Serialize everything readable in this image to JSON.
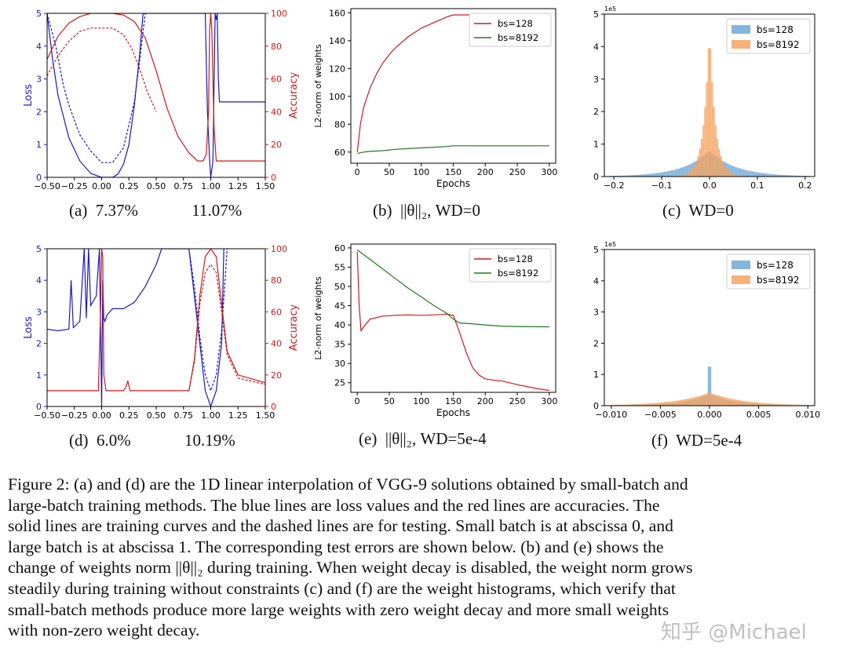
{
  "panels": {
    "a": {
      "caption": "(a)  7.37%             11.07%",
      "chart_data": {
        "type": "line",
        "xlim": [
          -0.5,
          1.5
        ],
        "xticks": [
          "−0.50",
          "−0.25",
          "0.00",
          "0.25",
          "0.50",
          "0.75",
          "1.00",
          "1.25",
          "1.50"
        ],
        "left_axis": {
          "label": "Loss",
          "lim": [
            0,
            5
          ],
          "ticks": [
            "0",
            "1",
            "2",
            "3",
            "4",
            "5"
          ],
          "color": "#1a1ab5"
        },
        "right_axis": {
          "label": "Accuracy",
          "lim": [
            0,
            100
          ],
          "ticks": [
            "0",
            "20",
            "40",
            "60",
            "80",
            "100"
          ],
          "color": "#cc1a1a"
        },
        "series": [
          {
            "kind": "loss-train",
            "style": "solid",
            "color": "#1a1ab5",
            "x": [
              -0.5,
              -0.45,
              -0.4,
              -0.3,
              -0.2,
              -0.1,
              0.0,
              0.1,
              0.15,
              0.2,
              0.25,
              0.3,
              0.35,
              0.38,
              0.95,
              0.97,
              0.99,
              1.0,
              1.02,
              1.04,
              1.05,
              1.06,
              1.07,
              1.08,
              1.09,
              1.1,
              1.5
            ],
            "y": [
              5,
              3.6,
              2.5,
              1.2,
              0.5,
              0.12,
              0,
              0,
              0.1,
              0.4,
              1.0,
              2.2,
              3.8,
              5,
              5,
              2.0,
              0.5,
              0,
              0.5,
              5,
              4.8,
              5,
              3,
              2.3,
              2.3,
              2.3,
              2.3
            ]
          },
          {
            "kind": "loss-test",
            "style": "dashed",
            "color": "#1a1ab5",
            "x": [
              -0.5,
              -0.42,
              -0.35,
              -0.3,
              -0.2,
              -0.1,
              0.0,
              0.1,
              0.2,
              0.3,
              0.35,
              0.4
            ],
            "y": [
              5,
              4.0,
              2.8,
              2.2,
              1.3,
              0.8,
              0.45,
              0.45,
              0.9,
              2.3,
              3.6,
              5
            ]
          },
          {
            "kind": "accuracy-train",
            "style": "solid",
            "color": "#cc1a1a",
            "x": [
              -0.5,
              -0.4,
              -0.3,
              -0.2,
              -0.1,
              0.0,
              0.1,
              0.2,
              0.3,
              0.4,
              0.5,
              0.6,
              0.7,
              0.8,
              0.88,
              0.93,
              0.96,
              0.98,
              0.99,
              1.0,
              1.01,
              1.03,
              1.05,
              1.1,
              1.5
            ],
            "y": [
              72,
              86,
              94,
              98,
              100,
              100,
              100,
              99,
              95,
              85,
              65,
              42,
              25,
              15,
              10,
              10,
              14,
              40,
              90,
              100,
              90,
              30,
              10,
              10,
              10
            ]
          },
          {
            "kind": "accuracy-test",
            "style": "dashed",
            "color": "#cc1a1a",
            "x": [
              -0.5,
              -0.4,
              -0.3,
              -0.2,
              -0.1,
              0.0,
              0.1,
              0.2,
              0.28,
              0.35,
              0.42,
              0.5
            ],
            "y": [
              62,
              74,
              83,
              89,
              91,
              91,
              91,
              87,
              78,
              66,
              52,
              40
            ]
          }
        ]
      }
    },
    "b": {
      "caption": "(b)  ||θ||₂, WD=0",
      "chart_data": {
        "type": "line",
        "xlabel": "Epochs",
        "ylabel": "L2-norm of weights",
        "xlim": [
          -10,
          310
        ],
        "ylim": [
          52,
          163
        ],
        "xticks": [
          "0",
          "50",
          "100",
          "150",
          "200",
          "250",
          "300"
        ],
        "yticks": [
          "60",
          "80",
          "100",
          "120",
          "140",
          "160"
        ],
        "legend": {
          "placement": "top-right",
          "entries": [
            "bs=128",
            "bs=8192"
          ]
        },
        "series": [
          {
            "name": "bs=128",
            "color": "#cc1a1a",
            "x": [
              0,
              5,
              10,
              20,
              30,
              40,
              50,
              60,
              70,
              80,
              90,
              100,
              110,
              120,
              130,
              140,
              150,
              155,
              160,
              180,
              200
            ],
            "y": [
              60,
              80,
              92,
              106,
              116,
              124,
              130,
              135,
              139,
              143,
              146,
              149,
              151,
              153,
              155,
              157,
              158.5,
              158.5,
              158.5,
              158.5,
              158.5
            ]
          },
          {
            "name": "bs=8192",
            "color": "#1e7a1e",
            "x": [
              0,
              10,
              20,
              40,
              60,
              80,
              100,
              120,
              140,
              150,
              160,
              200,
              250,
              300
            ],
            "y": [
              59,
              60,
              60.5,
              61,
              62,
              62.5,
              63,
              63.5,
              64,
              64.5,
              64.5,
              64.5,
              64.5,
              64.5
            ]
          }
        ]
      }
    },
    "c": {
      "caption": "(c)  WD=0",
      "chart_data": {
        "type": "histogram",
        "xlim": [
          -0.22,
          0.22
        ],
        "ylim": [
          0,
          5
        ],
        "xticks": [
          "−0.2",
          "−0.1",
          "0.0",
          "0.1",
          "0.2"
        ],
        "yticks": [
          "0",
          "1",
          "2",
          "3",
          "4",
          "5"
        ],
        "scale_label": "1e5",
        "legend": {
          "placement": "top-right",
          "entries": [
            "bs=128",
            "bs=8192"
          ]
        },
        "series": [
          {
            "name": "bs=128",
            "color": "#6fa8d6",
            "shape": "laplace",
            "peak": 0.8,
            "width": 0.055
          },
          {
            "name": "bs=8192",
            "color": "#f5a460",
            "shape": "spike",
            "peak": 4.6,
            "width": 0.012
          }
        ]
      }
    },
    "d": {
      "caption": "(d)  6.0%             10.19%",
      "chart_data": {
        "type": "line",
        "xlim": [
          -0.5,
          1.5
        ],
        "xticks": [
          "−0.50",
          "−0.25",
          "0.00",
          "0.25",
          "0.50",
          "0.75",
          "1.00",
          "1.25",
          "1.50"
        ],
        "left_axis": {
          "label": "Loss",
          "lim": [
            0,
            5
          ],
          "ticks": [
            "0",
            "1",
            "2",
            "3",
            "4",
            "5"
          ],
          "color": "#1a1ab5"
        },
        "right_axis": {
          "label": "Accuracy",
          "lim": [
            0,
            100
          ],
          "ticks": [
            "0",
            "20",
            "40",
            "60",
            "80",
            "100"
          ],
          "color": "#cc1a1a"
        },
        "series": [
          {
            "kind": "loss-train",
            "style": "solid",
            "color": "#1a1ab5",
            "x": [
              -0.5,
              -0.4,
              -0.3,
              -0.28,
              -0.26,
              -0.2,
              -0.16,
              -0.14,
              -0.12,
              -0.1,
              -0.05,
              -0.02,
              0.0,
              0.01,
              0.02,
              0.03,
              0.05,
              0.1,
              0.2,
              0.3,
              0.4,
              0.5,
              0.55,
              0.6,
              0.8,
              0.9,
              0.95,
              1.0,
              1.05,
              1.1,
              1.12
            ],
            "y": [
              2.45,
              2.4,
              2.45,
              4.0,
              2.5,
              2.7,
              5,
              2.8,
              5,
              3.2,
              3.5,
              5,
              0,
              4,
              2.8,
              2.7,
              2.9,
              3.1,
              3.1,
              3.3,
              3.8,
              4.5,
              5,
              5,
              5,
              2,
              0.5,
              0,
              0.5,
              2,
              5
            ]
          },
          {
            "kind": "loss-test",
            "style": "dashed",
            "color": "#1a1ab5",
            "x": [
              0.8,
              0.85,
              0.9,
              0.95,
              1.0,
              1.05,
              1.1,
              1.15
            ],
            "y": [
              5,
              3.8,
              2.2,
              1.0,
              0.5,
              1.0,
              2.4,
              5
            ]
          },
          {
            "kind": "accuracy-train",
            "style": "solid",
            "color": "#cc1a1a",
            "x": [
              -0.5,
              -0.1,
              -0.03,
              -0.01,
              0.0,
              0.01,
              0.02,
              0.04,
              0.1,
              0.2,
              0.22,
              0.24,
              0.26,
              0.3,
              0.8,
              0.85,
              0.9,
              0.95,
              1.0,
              1.05,
              1.1,
              1.15,
              1.25,
              1.5
            ],
            "y": [
              10,
              10,
              10,
              60,
              100,
              95,
              20,
              10,
              10,
              10,
              12,
              16,
              10,
              10,
              10,
              30,
              70,
              95,
              100,
              95,
              65,
              35,
              20,
              15
            ]
          },
          {
            "kind": "accuracy-test",
            "style": "dashed",
            "color": "#cc1a1a",
            "x": [
              0.8,
              0.85,
              0.9,
              0.95,
              1.0,
              1.05,
              1.1,
              1.15,
              1.25,
              1.5
            ],
            "y": [
              10,
              28,
              65,
              85,
              90,
              85,
              60,
              33,
              18,
              14
            ]
          }
        ]
      }
    },
    "e": {
      "caption": "(e)  ||θ||₂, WD=5e-4",
      "chart_data": {
        "type": "line",
        "xlabel": "Epochs",
        "ylabel": "L2-norm of weights",
        "xlim": [
          -10,
          310
        ],
        "ylim": [
          22.5,
          61
        ],
        "xticks": [
          "0",
          "50",
          "100",
          "150",
          "200",
          "250",
          "300"
        ],
        "yticks": [
          "25",
          "30",
          "35",
          "40",
          "45",
          "50",
          "55",
          "60"
        ],
        "legend": {
          "placement": "top-right",
          "entries": [
            "bs=128",
            "bs=8192"
          ]
        },
        "series": [
          {
            "name": "bs=128",
            "color": "#cc1a1a",
            "x": [
              0,
              3,
              6,
              10,
              20,
              40,
              60,
              80,
              100,
              120,
              140,
              150,
              160,
              170,
              180,
              190,
              200,
              220,
              225,
              250,
              280,
              300
            ],
            "y": [
              59,
              45,
              38.5,
              39.5,
              41.5,
              42.3,
              42.5,
              42.6,
              42.5,
              42.6,
              42.8,
              42.5,
              38,
              33,
              29,
              27,
              26,
              25.5,
              25.5,
              24.5,
              23.5,
              23
            ]
          },
          {
            "name": "bs=8192",
            "color": "#1e7a1e",
            "x": [
              0,
              20,
              40,
              60,
              80,
              100,
              120,
              140,
              150,
              160,
              180,
              200,
              225,
              250,
              300
            ],
            "y": [
              59.5,
              57,
              54.5,
              52,
              49.5,
              47.3,
              45,
              43,
              41.5,
              40.5,
              40.3,
              40,
              39.7,
              39.6,
              39.5
            ]
          }
        ]
      }
    },
    "f": {
      "caption": "(f)  WD=5e-4",
      "chart_data": {
        "type": "histogram",
        "xlim": [
          -0.0107,
          0.0107
        ],
        "ylim": [
          0,
          5
        ],
        "xticks": [
          "−0.010",
          "−0.005",
          "0.000",
          "0.005",
          "0.010"
        ],
        "yticks": [
          "0",
          "1",
          "2",
          "3",
          "4",
          "5"
        ],
        "scale_label": "1e5",
        "legend": {
          "placement": "top-right",
          "entries": [
            "bs=128",
            "bs=8192"
          ]
        },
        "series": [
          {
            "name": "bs=128",
            "color": "#6fa8d6",
            "shape": "laplace",
            "peak": 1.25,
            "width": 0.0025
          },
          {
            "name": "bs=8192",
            "color": "#f5a460",
            "shape": "laplace",
            "peak": 0.42,
            "width": 0.0035
          }
        ]
      }
    }
  },
  "figure_caption": [
    "Figure 2: (a) and (d) are the 1D linear interpolation of VGG-9 solutions obtained by small-batch and",
    "large-batch training methods. The blue lines are loss values and the red lines are accuracies. The",
    "solid lines are training curves and the dashed lines are for testing. Small batch is at abscissa 0, and",
    "large batch is at abscissa 1. The corresponding test errors are shown below. (b) and (e) shows the",
    "change of weights norm ||θ||₂ during training. When weight decay is disabled, the weight norm grows",
    "steadily during training without constraints (c) and (f) are the weight histograms, which verify that",
    "small-batch methods produce more large weights with zero weight decay and more small weights",
    "with non-zero weight decay."
  ],
  "watermark": "知乎 @Michael"
}
